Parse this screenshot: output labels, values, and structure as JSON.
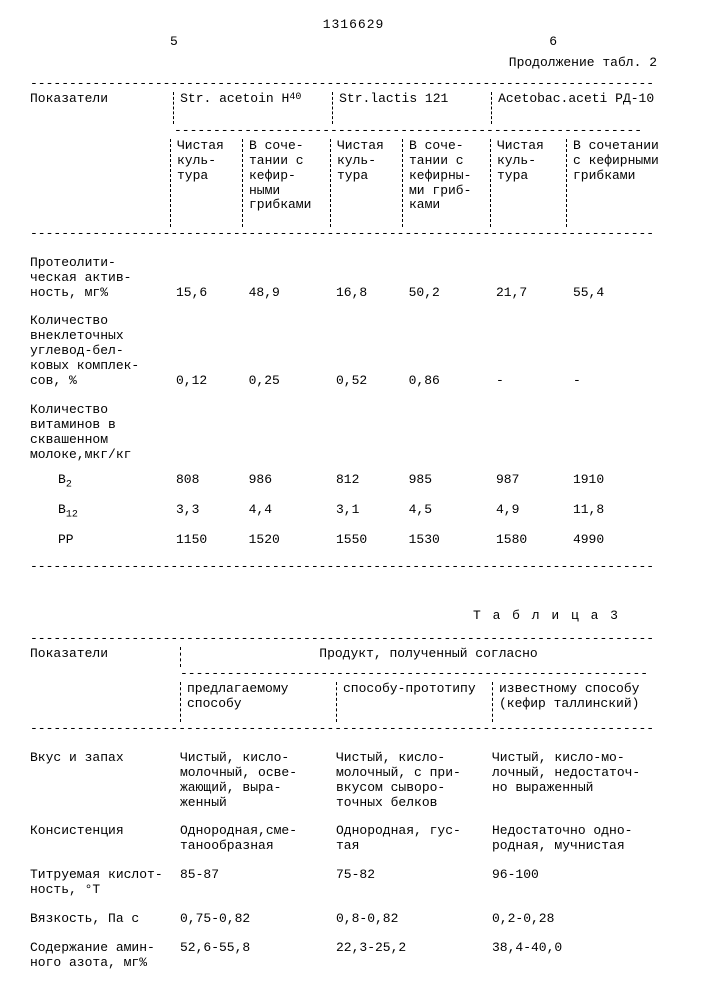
{
  "doc_number": "1316629",
  "page_left": "5",
  "page_right": "6",
  "continuation": "Продолжение табл. 2",
  "t2": {
    "col0": "Показатели",
    "groups": [
      "Str. acetoin H",
      "Str.lactis 121",
      "Acetobac.aceti РД-10"
    ],
    "group0_sub": "40",
    "sub_pure": "Чистая\nкуль-\nтура",
    "sub_comb": "В соче-\nтании с\nкефир-\nными\nгрибками",
    "sub_comb2": "В соче-\nтании с\nкефирны-\nми гриб-\nками",
    "sub_comb3": "В сочетании\nс кефирными\nгрибками",
    "rows": [
      {
        "label": "Протеолити-\nческая актив-\nность, мг%",
        "v": [
          "15,6",
          "48,9",
          "16,8",
          "50,2",
          "21,7",
          "55,4"
        ]
      },
      {
        "label": "Количество\nвнеклеточных\nуглевод-бел-\nковых комплек-\nсов, %",
        "v": [
          "0,12",
          "0,25",
          "0,52",
          "0,86",
          "-",
          "-"
        ]
      },
      {
        "label": "Количество\nвитаминов в\nсквашенном\nмолоке,мкг/кг",
        "v": [
          "",
          "",
          "",
          "",
          "",
          ""
        ]
      }
    ],
    "vit": [
      {
        "name": "B",
        "sub": "2",
        "v": [
          "808",
          "986",
          "812",
          "985",
          "987",
          "1910"
        ]
      },
      {
        "name": "B",
        "sub": "12",
        "v": [
          "3,3",
          "4,4",
          "3,1",
          "4,5",
          "4,9",
          "11,8"
        ]
      },
      {
        "name": "PP",
        "sub": "",
        "v": [
          "1150",
          "1520",
          "1550",
          "1530",
          "1580",
          "4990"
        ]
      }
    ]
  },
  "t3": {
    "title": "Т а б л и ц а  3",
    "col0": "Показатели",
    "super": "Продукт, полученный согласно",
    "cols": [
      "предлагаемому\nспособу",
      "способу-прототипу",
      "известному способу\n(кефир таллинский)"
    ],
    "rows": [
      {
        "label": "Вкус и запах",
        "v": [
          "Чистый, кисло-\nмолочный, осве-\nжающий, выра-\nженный",
          "Чистый, кисло-\nмолочный, с при-\nвкусом сыворо-\nточных белков",
          "Чистый, кисло-мо-\nлочный, недостаточ-\nно выраженный"
        ]
      },
      {
        "label": "Консистенция",
        "v": [
          "Однородная,сме-\nтанообразная",
          "Однородная, гус-\nтая",
          "Недостаточно одно-\nродная, мучнистая"
        ]
      },
      {
        "label": "Титруемая кислот-\nность, °Т",
        "v": [
          "85-87",
          "75-82",
          "96-100"
        ]
      },
      {
        "label": "Вязкость, Па с",
        "v": [
          "0,75-0,82",
          "0,8-0,82",
          "0,2-0,28"
        ]
      },
      {
        "label": "Содержание амин-\nного азота, мг%",
        "v": [
          "52,6-55,8",
          "22,3-25,2",
          "38,4-40,0"
        ]
      }
    ]
  },
  "dash_full": "--------------------------------------------------------------------------------",
  "dash_groups": "------------------------------------------------------------"
}
